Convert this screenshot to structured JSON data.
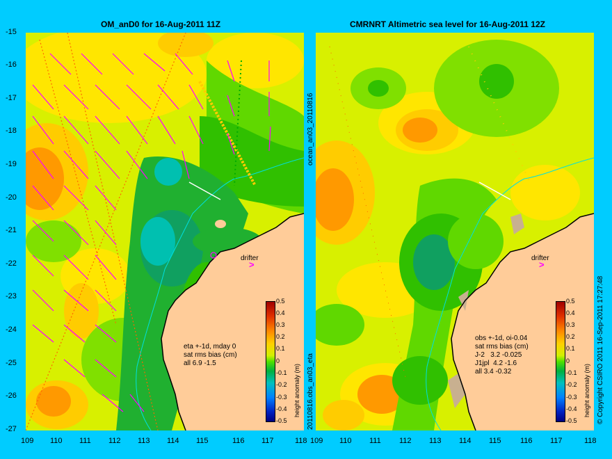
{
  "left": {
    "title": "OM_anD0 for 16-Aug-2011 11Z",
    "info": "eta +-1d, mday 0\nsat rms bias (cm)\nall 6.9 -1.5",
    "drifter": "drifter",
    "side_label_top": "ocean_an03_20110816",
    "side_label_bottom": "20110816.obs_an03_eta"
  },
  "right": {
    "title": "CMRNRT Altimetric sea level  for 16-Aug-2011 12Z",
    "info": "obs +-1d, oi-0.04\nsat rms bias (cm)\nJ-2   3.2 -0.025\nJ1jpl  4.2 -1.6\nall 3.4 -0.32",
    "drifter": "drifter",
    "copyright": "© Copyright CSIRO 2011   16-Sep-2011 17:27:48"
  },
  "axes": {
    "lat_ticks": [
      "-15",
      "-16",
      "-17",
      "-18",
      "-19",
      "-20",
      "-21",
      "-22",
      "-23",
      "-24",
      "-25",
      "-26",
      "-27"
    ],
    "lon_ticks": [
      "109",
      "110",
      "111",
      "112",
      "113",
      "114",
      "115",
      "116",
      "117",
      "118"
    ]
  },
  "colorbar": {
    "title": "height anomaly (m)",
    "ticks": [
      "0.5",
      "0.4",
      "0.3",
      "0.2",
      "0.1",
      "0",
      "-0.1",
      "-0.2",
      "-0.3",
      "-0.4",
      "-0.5"
    ]
  },
  "colors": {
    "background": "#00ccff",
    "land": "#ffcc99",
    "vectors": "#ff00ff"
  }
}
